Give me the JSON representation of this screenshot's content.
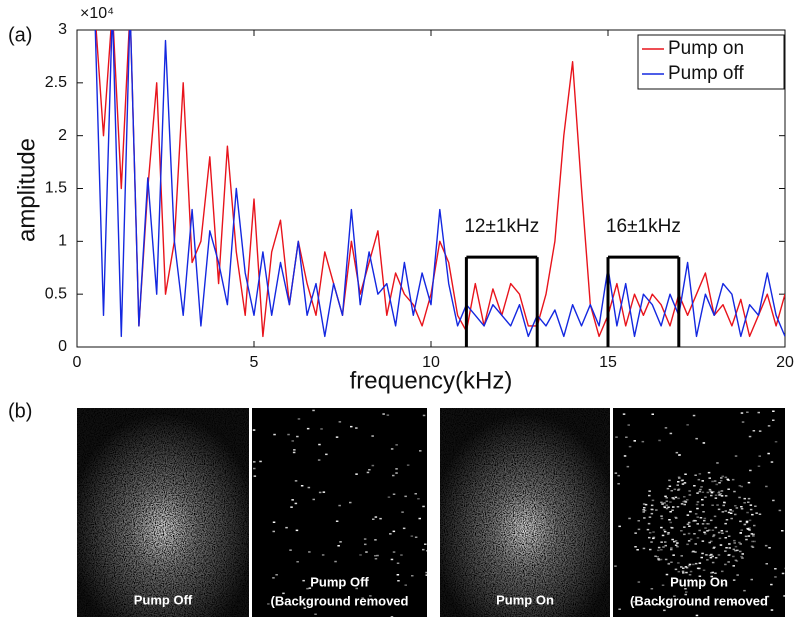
{
  "chart_data": {
    "type": "line",
    "panel_label": "(a)",
    "x_label": "frequency(kHz)",
    "y_label": "amplitude",
    "y_multiplier": "×10⁴",
    "xlim": [
      0,
      20
    ],
    "ylim": [
      0,
      3
    ],
    "xticks": [
      0,
      5,
      10,
      15,
      20
    ],
    "yticks": [
      0,
      0.5,
      1,
      1.5,
      2,
      2.5,
      3
    ],
    "legend_position": "top-right",
    "x": [
      0.5,
      0.75,
      1,
      1.25,
      1.5,
      1.75,
      2,
      2.25,
      2.5,
      2.75,
      3,
      3.25,
      3.5,
      3.75,
      4,
      4.25,
      4.5,
      4.75,
      5,
      5.25,
      5.5,
      5.75,
      6,
      6.25,
      6.5,
      6.75,
      7,
      7.25,
      7.5,
      7.75,
      8,
      8.25,
      8.5,
      8.75,
      9,
      9.25,
      9.5,
      9.75,
      10,
      10.25,
      10.5,
      10.75,
      11,
      11.25,
      11.5,
      11.75,
      12,
      12.25,
      12.5,
      12.75,
      13,
      13.25,
      13.5,
      13.75,
      14,
      14.25,
      14.5,
      14.75,
      15,
      15.25,
      15.5,
      15.75,
      16,
      16.25,
      16.5,
      16.75,
      17,
      17.25,
      17.5,
      17.75,
      18,
      18.25,
      18.5,
      18.75,
      19,
      19.25,
      19.5,
      19.75,
      20
    ],
    "series": [
      {
        "name": "Pump on",
        "color": "#e8141c",
        "values": [
          3.2,
          2.0,
          3.2,
          1.5,
          3.2,
          0.2,
          1.5,
          2.5,
          0.5,
          1.0,
          2.5,
          0.8,
          1.0,
          1.8,
          0.6,
          1.9,
          0.9,
          0.3,
          1.4,
          0.1,
          0.9,
          1.2,
          0.4,
          1.0,
          0.6,
          0.3,
          0.9,
          0.6,
          0.3,
          1.0,
          0.5,
          0.8,
          1.1,
          0.3,
          0.7,
          0.5,
          0.4,
          0.2,
          0.5,
          1.0,
          0.8,
          0.3,
          0.15,
          0.6,
          0.2,
          0.55,
          0.3,
          0.6,
          0.5,
          0.2,
          0.2,
          0.5,
          1.0,
          2.0,
          2.7,
          1.5,
          0.4,
          0.1,
          0.3,
          0.6,
          0.2,
          0.5,
          0.3,
          0.5,
          0.4,
          0.2,
          0.5,
          0.3,
          0.5,
          0.7,
          0.3,
          0.4,
          0.2,
          0.45,
          0.1,
          0.3,
          0.5,
          0.2,
          0.5
        ]
      },
      {
        "name": "Pump off",
        "color": "#1428e0",
        "values": [
          3.2,
          0.3,
          3.2,
          0.1,
          3.2,
          0.2,
          1.6,
          0.5,
          2.9,
          1.0,
          0.3,
          1.3,
          0.2,
          1.1,
          0.8,
          0.4,
          1.5,
          0.7,
          0.3,
          0.9,
          0.3,
          0.8,
          0.4,
          1.0,
          0.3,
          0.6,
          0.1,
          0.6,
          0.3,
          1.3,
          0.4,
          0.9,
          0.5,
          0.6,
          0.2,
          0.8,
          0.3,
          0.7,
          0.4,
          1.3,
          0.6,
          0.2,
          0.4,
          0.3,
          0.2,
          0.4,
          0.3,
          0.2,
          0.4,
          0.1,
          0.3,
          0.2,
          0.35,
          0.1,
          0.4,
          0.2,
          0.4,
          0.2,
          0.75,
          0.2,
          0.6,
          0.1,
          0.5,
          0.4,
          0.2,
          0.5,
          0.3,
          0.8,
          0.1,
          0.5,
          0.3,
          0.6,
          0.5,
          0.1,
          0.4,
          0.3,
          0.7,
          0.3,
          0.1
        ]
      }
    ],
    "annotations": [
      {
        "text": "12±1kHz",
        "x": [
          11,
          13
        ],
        "y": 0.85
      },
      {
        "text": "16±1kHz",
        "x": [
          15,
          17
        ],
        "y": 0.85
      }
    ]
  },
  "image_panel": {
    "panel_label": "(b)",
    "tiles": [
      {
        "caption": [
          "Pump Off"
        ]
      },
      {
        "caption": [
          "Pump Off",
          "(Background removed"
        ]
      },
      {
        "caption": [
          "Pump On"
        ]
      },
      {
        "caption": [
          "Pump On",
          "(Background removed"
        ]
      }
    ]
  }
}
